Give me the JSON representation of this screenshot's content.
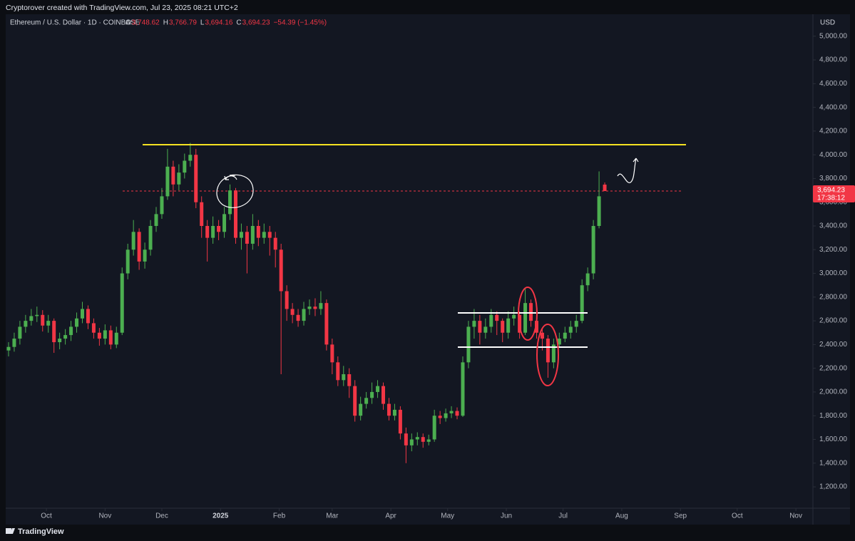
{
  "header": {
    "attribution": "Cryptorover created with TradingView.com, Jul 23, 2025 08:21 UTC+2",
    "symbol": "Ethereum / U.S. Dollar · 1D · COINBASE",
    "ohlc": [
      {
        "key": "O",
        "label": "3,748.62"
      },
      {
        "key": "H",
        "label": "3,766.79"
      },
      {
        "key": "L",
        "label": "3,694.16"
      },
      {
        "key": "C",
        "label": "3,694.23"
      }
    ],
    "change": "−54.39 (−1.45%)"
  },
  "chart_data": {
    "type": "candlestick",
    "currency": "USD",
    "x": [
      -20,
      -17,
      -14,
      -11,
      -8,
      -5,
      -2,
      1,
      4,
      7,
      10,
      13,
      16,
      19,
      22,
      25,
      28,
      31,
      34,
      37,
      40,
      43,
      46,
      49,
      52,
      55,
      58,
      61,
      64,
      67,
      70,
      73,
      76,
      79,
      82,
      85,
      88,
      91,
      94,
      97,
      100,
      103,
      106,
      109,
      112,
      115,
      118,
      121,
      124,
      127,
      130,
      133,
      136,
      139,
      142,
      145,
      148,
      151,
      154,
      157,
      160,
      163,
      166,
      169,
      172,
      175,
      178,
      181,
      184,
      187,
      190,
      193,
      196,
      199,
      202,
      205,
      208,
      211,
      214,
      217,
      220,
      223,
      226,
      229,
      232,
      235,
      238,
      241,
      244,
      247,
      250,
      253,
      256,
      259,
      262,
      265,
      268,
      271,
      274,
      277,
      280,
      283,
      286,
      289,
      292,
      295
    ],
    "open": [
      2350,
      2380,
      2450,
      2550,
      2600,
      2640,
      2650,
      2560,
      2600,
      2420,
      2450,
      2480,
      2550,
      2620,
      2700,
      2580,
      2500,
      2450,
      2520,
      2400,
      2500,
      3000,
      3200,
      3350,
      3100,
      3200,
      3400,
      3500,
      3650,
      3900,
      3750,
      3850,
      3950,
      4000,
      3600,
      3400,
      3300,
      3400,
      3350,
      3500,
      3700,
      3300,
      3350,
      3250,
      3400,
      3300,
      3350,
      3300,
      3200,
      2850,
      2700,
      2650,
      2600,
      2700,
      2720,
      2700,
      2750,
      2400,
      2250,
      2100,
      2150,
      2050,
      1800,
      1900,
      1950,
      2000,
      2050,
      1900,
      1800,
      1850,
      1650,
      1550,
      1600,
      1620,
      1580,
      1600,
      1800,
      1780,
      1820,
      1840,
      1800,
      2250,
      2550,
      2600,
      2500,
      2550,
      2650,
      2600,
      2500,
      2620,
      2650,
      2500,
      2750,
      2600,
      2500,
      2450,
      2250,
      2400,
      2450,
      2500,
      2550,
      2600,
      2900,
      3000,
      3400,
      3748.62
    ],
    "high": [
      2420,
      2500,
      2600,
      2650,
      2700,
      2720,
      2690,
      2650,
      2620,
      2500,
      2530,
      2600,
      2670,
      2760,
      2730,
      2620,
      2540,
      2570,
      2560,
      2550,
      3050,
      3250,
      3450,
      3380,
      3260,
      3450,
      3560,
      3720,
      4050,
      3950,
      3920,
      4010,
      4100,
      4050,
      3650,
      3450,
      3480,
      3450,
      3560,
      3750,
      3720,
      3420,
      3400,
      3500,
      3450,
      3420,
      3400,
      3350,
      3250,
      2900,
      2750,
      2700,
      2760,
      2780,
      2790,
      2850,
      2780,
      2450,
      2300,
      2220,
      2200,
      2100,
      1960,
      2000,
      2080,
      2100,
      2080,
      1950,
      1900,
      1880,
      1700,
      1650,
      1660,
      1650,
      1640,
      1850,
      1840,
      1860,
      1880,
      1870,
      2300,
      2600,
      2700,
      2650,
      2620,
      2700,
      2680,
      2620,
      2680,
      2720,
      2680,
      2870,
      2780,
      2650,
      2530,
      2480,
      2450,
      2500,
      2550,
      2600,
      2650,
      2950,
      3050,
      3450,
      3860,
      3766.79
    ],
    "low": [
      2300,
      2340,
      2400,
      2500,
      2560,
      2590,
      2510,
      2500,
      2330,
      2360,
      2400,
      2430,
      2500,
      2580,
      2530,
      2450,
      2390,
      2400,
      2360,
      2370,
      2480,
      2950,
      3150,
      3030,
      3040,
      3150,
      3350,
      3460,
      3620,
      3650,
      3700,
      3800,
      3900,
      3550,
      3300,
      3100,
      3250,
      3280,
      3300,
      3450,
      3250,
      3200,
      3000,
      3200,
      3230,
      3250,
      3150,
      3050,
      2150,
      2600,
      2580,
      2550,
      2560,
      2650,
      2640,
      2650,
      2350,
      2150,
      2050,
      2050,
      1950,
      1750,
      1760,
      1860,
      1900,
      1950,
      1850,
      1760,
      1760,
      1600,
      1400,
      1500,
      1550,
      1530,
      1550,
      1580,
      1730,
      1750,
      1780,
      1770,
      1790,
      2200,
      2450,
      2400,
      2450,
      2500,
      2480,
      2420,
      2450,
      2560,
      2450,
      2480,
      2550,
      2450,
      2350,
      2120,
      2200,
      2380,
      2420,
      2450,
      2500,
      2580,
      2850,
      2950,
      3380,
      3694.16
    ],
    "close": [
      2380,
      2450,
      2550,
      2600,
      2640,
      2650,
      2560,
      2600,
      2420,
      2450,
      2480,
      2550,
      2620,
      2700,
      2580,
      2500,
      2450,
      2520,
      2400,
      2500,
      3000,
      3200,
      3350,
      3100,
      3200,
      3400,
      3500,
      3650,
      3900,
      3750,
      3850,
      3950,
      4000,
      3600,
      3400,
      3300,
      3400,
      3350,
      3500,
      3700,
      3300,
      3350,
      3250,
      3400,
      3300,
      3350,
      3300,
      3200,
      2850,
      2700,
      2650,
      2600,
      2700,
      2720,
      2700,
      2750,
      2400,
      2250,
      2100,
      2150,
      2050,
      1800,
      1900,
      1950,
      2000,
      2050,
      1900,
      1800,
      1850,
      1650,
      1550,
      1600,
      1620,
      1580,
      1600,
      1800,
      1780,
      1820,
      1840,
      1800,
      2250,
      2550,
      2600,
      2500,
      2550,
      2650,
      2600,
      2500,
      2620,
      2650,
      2500,
      2750,
      2600,
      2500,
      2450,
      2250,
      2400,
      2450,
      2500,
      2550,
      2600,
      2900,
      3000,
      3400,
      3650,
      3694.23
    ],
    "up_color": "#4caf50",
    "down_color": "#f23645",
    "xlim": [
      -21.5,
      405
    ],
    "xticks": [
      {
        "value": 0,
        "label": "Oct"
      },
      {
        "value": 31,
        "label": "Nov"
      },
      {
        "value": 61,
        "label": "Dec"
      },
      {
        "value": 92,
        "label": "2025"
      },
      {
        "value": 123,
        "label": "Feb"
      },
      {
        "value": 151,
        "label": "Mar"
      },
      {
        "value": 182,
        "label": "Apr"
      },
      {
        "value": 212,
        "label": "May"
      },
      {
        "value": 243,
        "label": "Jun"
      },
      {
        "value": 273,
        "label": "Jul"
      },
      {
        "value": 304,
        "label": "Aug"
      },
      {
        "value": 335,
        "label": "Sep"
      },
      {
        "value": 365,
        "label": "Oct"
      },
      {
        "value": 396,
        "label": "Nov"
      }
    ],
    "ylim": [
      1020,
      5185
    ],
    "yticks": [
      {
        "value": 1200,
        "label": "1,200.00"
      },
      {
        "value": 1400,
        "label": "1,400.00"
      },
      {
        "value": 1600,
        "label": "1,600.00"
      },
      {
        "value": 1800,
        "label": "1,800.00"
      },
      {
        "value": 2000,
        "label": "2,000.00"
      },
      {
        "value": 2200,
        "label": "2,200.00"
      },
      {
        "value": 2400,
        "label": "2,400.00"
      },
      {
        "value": 2600,
        "label": "2,600.00"
      },
      {
        "value": 2800,
        "label": "2,800.00"
      },
      {
        "value": 3000,
        "label": "3,000.00"
      },
      {
        "value": 3200,
        "label": "3,200.00"
      },
      {
        "value": 3400,
        "label": "3,400.00"
      },
      {
        "value": 3600,
        "label": "3,600.00"
      },
      {
        "value": 3800,
        "label": "3,800.00"
      },
      {
        "value": 4000,
        "label": "4,000.00"
      },
      {
        "value": 4200,
        "label": "4,200.00"
      },
      {
        "value": 4400,
        "label": "4,400.00"
      },
      {
        "value": 4600,
        "label": "4,600.00"
      },
      {
        "value": 4800,
        "label": "4,800.00"
      },
      {
        "value": 5000,
        "label": "5,000.00"
      }
    ],
    "last_price_label": "3,694.23",
    "countdown": "17:38:12"
  },
  "footer": {
    "brand": "TradingView"
  }
}
